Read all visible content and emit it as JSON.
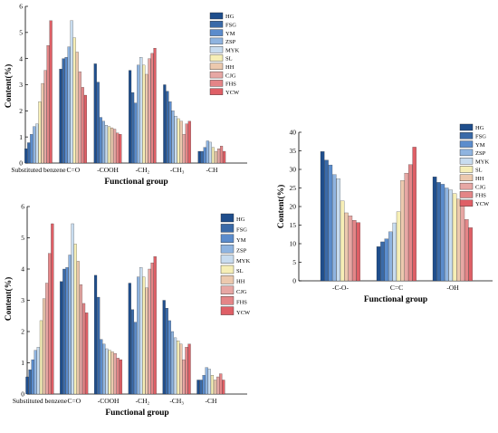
{
  "legend": [
    "HG",
    "FSG",
    "YM",
    "ZSP",
    "MYK",
    "SL",
    "HH",
    "CJG",
    "FHS",
    "YCW"
  ],
  "colors": {
    "HG": "#1f4e8c",
    "FSG": "#3a6aa8",
    "YM": "#5b8ccc",
    "ZSP": "#8fb4e0",
    "MYK": "#c8dcef",
    "SL": "#f6eeb6",
    "HH": "#ecc9ae",
    "CJG": "#e7a7a4",
    "FHS": "#e48587",
    "YCW": "#df5f66",
    "axis": "#000000"
  },
  "chart_data": [
    {
      "id": "top-left",
      "type": "bar",
      "title": "",
      "xlabel": "Functional group",
      "ylabel": "Content(%)",
      "ylim": [
        0,
        6
      ],
      "yticks": [
        "0",
        "1",
        "2",
        "3",
        "4",
        "5",
        "6"
      ],
      "categories": [
        "Substituted benzene",
        "C=O",
        "-COOH",
        "-CH₂",
        "-CH₃",
        "-CH"
      ],
      "legend_position": "top-right",
      "series": [
        {
          "name": "HG",
          "values": [
            0.55,
            3.6,
            3.8,
            3.55,
            3.0,
            0.45
          ]
        },
        {
          "name": "FSG",
          "values": [
            0.78,
            4.0,
            3.1,
            2.7,
            2.75,
            0.45
          ]
        },
        {
          "name": "YM",
          "values": [
            1.1,
            4.05,
            1.75,
            2.3,
            2.35,
            0.6
          ]
        },
        {
          "name": "ZSP",
          "values": [
            1.4,
            4.45,
            1.6,
            3.75,
            2.0,
            0.85
          ]
        },
        {
          "name": "MYK",
          "values": [
            1.5,
            5.45,
            1.45,
            4.05,
            1.8,
            0.8
          ]
        },
        {
          "name": "SL",
          "values": [
            2.35,
            4.8,
            1.4,
            3.75,
            1.7,
            0.6
          ]
        },
        {
          "name": "HH",
          "values": [
            3.05,
            4.25,
            1.35,
            3.4,
            1.6,
            0.45
          ]
        },
        {
          "name": "CJG",
          "values": [
            3.55,
            3.5,
            1.3,
            4.0,
            1.1,
            0.55
          ]
        },
        {
          "name": "FHS",
          "values": [
            4.5,
            2.9,
            1.15,
            4.2,
            1.5,
            0.65
          ]
        },
        {
          "name": "YCW",
          "values": [
            5.45,
            2.6,
            1.1,
            4.4,
            1.6,
            0.45
          ]
        }
      ]
    },
    {
      "id": "right",
      "type": "bar",
      "title": "",
      "xlabel": "Functional group",
      "ylabel": "Content(%)",
      "ylim": [
        0,
        40
      ],
      "yticks": [
        "0",
        "5",
        "10",
        "15",
        "20",
        "25",
        "30",
        "35",
        "40"
      ],
      "categories": [
        "-C-O-",
        "C=C",
        "-OH"
      ],
      "legend_position": "top-right",
      "series": [
        {
          "name": "HG",
          "values": [
            34.8,
            9.2,
            28.0
          ]
        },
        {
          "name": "FSG",
          "values": [
            32.5,
            10.5,
            26.5
          ]
        },
        {
          "name": "YM",
          "values": [
            31.2,
            11.3,
            26.0
          ]
        },
        {
          "name": "ZSP",
          "values": [
            28.6,
            13.2,
            25.0
          ]
        },
        {
          "name": "MYK",
          "values": [
            27.5,
            15.6,
            24.5
          ]
        },
        {
          "name": "SL",
          "values": [
            21.5,
            18.6,
            23.5
          ]
        },
        {
          "name": "HH",
          "values": [
            18.3,
            27.0,
            22.0
          ]
        },
        {
          "name": "CJG",
          "values": [
            17.5,
            29.0,
            20.8
          ]
        },
        {
          "name": "FHS",
          "values": [
            16.3,
            31.3,
            16.5
          ]
        },
        {
          "name": "YCW",
          "values": [
            15.7,
            36.0,
            14.3
          ]
        }
      ]
    },
    {
      "id": "bottom-left",
      "type": "bar",
      "title": "",
      "xlabel": "Functional group",
      "ylabel": "Content(%)",
      "ylim": [
        0,
        6
      ],
      "yticks": [
        "0",
        "1",
        "2",
        "3",
        "4",
        "5",
        "6"
      ],
      "categories": [
        "Substituted benzene",
        "C=O",
        "-COOH",
        "-CH₂",
        "-CH₃",
        "-CH"
      ],
      "legend_position": "top-right",
      "series": [
        {
          "name": "HG",
          "values": [
            0.55,
            3.6,
            3.8,
            3.55,
            3.0,
            0.45
          ]
        },
        {
          "name": "FSG",
          "values": [
            0.78,
            4.0,
            3.1,
            2.7,
            2.75,
            0.45
          ]
        },
        {
          "name": "YM",
          "values": [
            1.1,
            4.05,
            1.75,
            2.3,
            2.35,
            0.6
          ]
        },
        {
          "name": "ZSP",
          "values": [
            1.4,
            4.45,
            1.6,
            3.75,
            2.0,
            0.85
          ]
        },
        {
          "name": "MYK",
          "values": [
            1.5,
            5.45,
            1.45,
            4.05,
            1.8,
            0.8
          ]
        },
        {
          "name": "SL",
          "values": [
            2.35,
            4.8,
            1.4,
            3.75,
            1.7,
            0.6
          ]
        },
        {
          "name": "HH",
          "values": [
            3.05,
            4.25,
            1.35,
            3.4,
            1.6,
            0.45
          ]
        },
        {
          "name": "CJG",
          "values": [
            3.55,
            3.5,
            1.3,
            4.0,
            1.1,
            0.55
          ]
        },
        {
          "name": "FHS",
          "values": [
            4.5,
            2.9,
            1.15,
            4.2,
            1.5,
            0.65
          ]
        },
        {
          "name": "YCW",
          "values": [
            5.45,
            2.6,
            1.1,
            4.4,
            1.6,
            0.45
          ]
        }
      ]
    }
  ]
}
